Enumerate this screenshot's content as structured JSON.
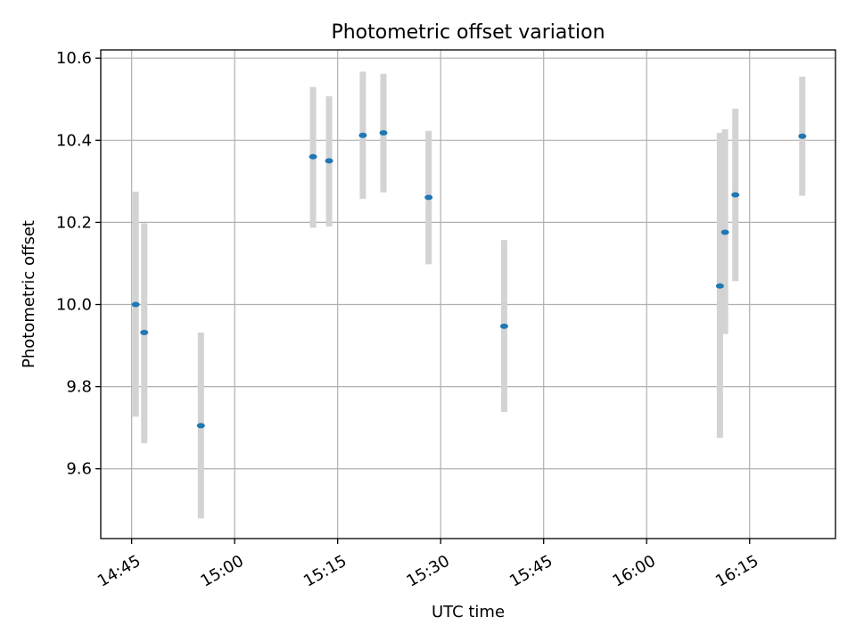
{
  "chart_data": {
    "type": "scatter",
    "title": "Photometric offset variation",
    "xlabel": "UTC time",
    "ylabel": "Photometric offset",
    "x_unit": "UTC clock time (HH:MM:SS)",
    "xlim": [
      "14:40:30",
      "16:27:30"
    ],
    "ylim": [
      9.43,
      10.62
    ],
    "x_ticks": [
      "14:45",
      "15:00",
      "15:15",
      "15:30",
      "15:45",
      "16:00",
      "16:15"
    ],
    "y_ticks": [
      9.6,
      9.8,
      10.0,
      10.2,
      10.4,
      10.6
    ],
    "y_tick_labels": [
      "9.6",
      "9.8",
      "10.0",
      "10.2",
      "10.4",
      "10.6"
    ],
    "grid": true,
    "colors": {
      "points": "#1f77b4",
      "error_bars": "#d3d3d3"
    },
    "points": [
      {
        "x": "14:45:35",
        "y": 10.0,
        "yerr_low": 9.727,
        "yerr_high": 10.275
      },
      {
        "x": "14:46:50",
        "y": 9.932,
        "yerr_low": 9.662,
        "yerr_high": 10.198
      },
      {
        "x": "14:55:05",
        "y": 9.705,
        "yerr_low": 9.479,
        "yerr_high": 9.932
      },
      {
        "x": "15:11:25",
        "y": 10.36,
        "yerr_low": 10.187,
        "yerr_high": 10.53
      },
      {
        "x": "15:13:45",
        "y": 10.35,
        "yerr_low": 10.19,
        "yerr_high": 10.507
      },
      {
        "x": "15:18:40",
        "y": 10.412,
        "yerr_low": 10.257,
        "yerr_high": 10.567
      },
      {
        "x": "15:21:40",
        "y": 10.418,
        "yerr_low": 10.273,
        "yerr_high": 10.562
      },
      {
        "x": "15:28:15",
        "y": 10.261,
        "yerr_low": 10.098,
        "yerr_high": 10.423
      },
      {
        "x": "15:39:15",
        "y": 9.947,
        "yerr_low": 9.738,
        "yerr_high": 10.157
      },
      {
        "x": "16:10:40",
        "y": 10.045,
        "yerr_low": 9.675,
        "yerr_high": 10.418
      },
      {
        "x": "16:11:25",
        "y": 10.176,
        "yerr_low": 9.928,
        "yerr_high": 10.427
      },
      {
        "x": "16:12:55",
        "y": 10.267,
        "yerr_low": 10.057,
        "yerr_high": 10.477
      },
      {
        "x": "16:22:40",
        "y": 10.41,
        "yerr_low": 10.265,
        "yerr_high": 10.555
      }
    ]
  }
}
